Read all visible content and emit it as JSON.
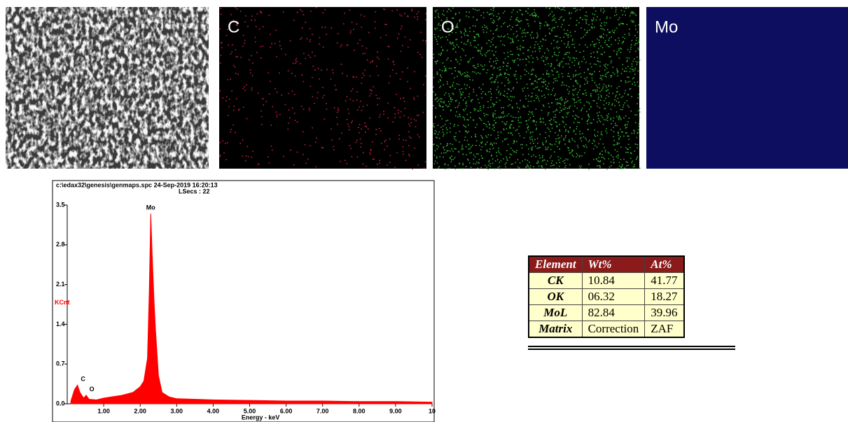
{
  "maps": [
    {
      "label": "C",
      "color": "#c0203a"
    },
    {
      "label": "O",
      "color": "#2fb02f"
    },
    {
      "label": "Mo",
      "color": "#1a1ab0"
    }
  ],
  "chart_data": {
    "type": "area",
    "header": "c:\\edax32\\genesis\\genmaps.spc  24-Sep-2019 16:20:13",
    "subheader": "LSecs : 22",
    "ylabel": "KCnt",
    "xlabel": "Energy - keV",
    "color": "#ff0000",
    "x": [
      0.1,
      0.2,
      0.28,
      0.35,
      0.45,
      0.52,
      0.6,
      0.8,
      1.0,
      1.2,
      1.5,
      1.8,
      2.0,
      2.1,
      2.2,
      2.25,
      2.29,
      2.33,
      2.38,
      2.42,
      2.5,
      2.6,
      2.8,
      3.0,
      3.5,
      4.0,
      5.0,
      6.0,
      7.0,
      8.0,
      9.0,
      10.0
    ],
    "values": [
      0.05,
      0.25,
      0.33,
      0.2,
      0.1,
      0.15,
      0.08,
      0.07,
      0.1,
      0.12,
      0.15,
      0.2,
      0.3,
      0.4,
      0.8,
      2.0,
      3.35,
      2.6,
      1.8,
      1.3,
      0.5,
      0.2,
      0.12,
      0.09,
      0.08,
      0.07,
      0.06,
      0.05,
      0.05,
      0.04,
      0.04,
      0.03
    ],
    "peak_labels": [
      {
        "text": "C",
        "x": 0.28
      },
      {
        "text": "O",
        "x": 0.52
      },
      {
        "text": "Mo",
        "x": 2.29
      }
    ],
    "xlim": [
      0,
      10
    ],
    "xticks": [
      {
        "value": 1,
        "label": "1.00"
      },
      {
        "value": 2,
        "label": "2.00"
      },
      {
        "value": 3,
        "label": "3.00"
      },
      {
        "value": 4,
        "label": "4.00"
      },
      {
        "value": 5,
        "label": "5.00"
      },
      {
        "value": 6,
        "label": "6.00"
      },
      {
        "value": 7,
        "label": "7.00"
      },
      {
        "value": 8,
        "label": "8.00"
      },
      {
        "value": 9,
        "label": "9.00"
      },
      10
    ],
    "ylim": [
      0,
      3.5
    ],
    "yticks": [
      {
        "value": 0,
        "label": "0.0"
      },
      0.7,
      1.4,
      2.1,
      2.8,
      3.5
    ]
  },
  "table": {
    "header": [
      "Element",
      "Wt%",
      "At%"
    ],
    "rows": [
      [
        "CK",
        "10.84",
        "41.77"
      ],
      [
        "OK",
        "06.32",
        "18.27"
      ],
      [
        "MoL",
        "82.84",
        "39.96"
      ],
      [
        "Matrix",
        "Correction",
        "ZAF"
      ]
    ]
  }
}
